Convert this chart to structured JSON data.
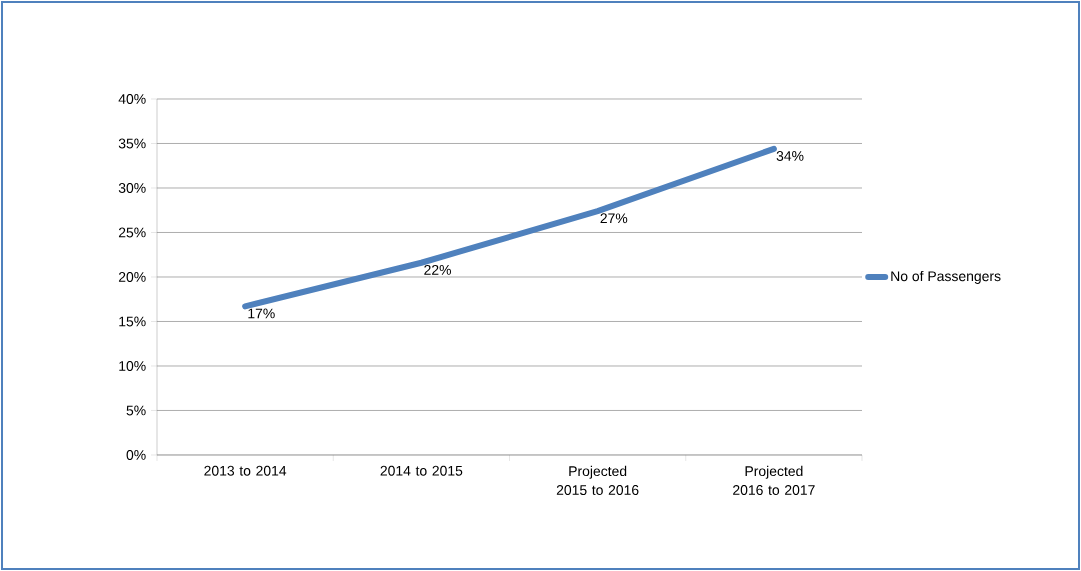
{
  "chart_data": {
    "type": "line",
    "categories": [
      "2013 to 2014",
      "2014 to 2015",
      "Projected 2015 to 2016",
      "Projected 2016 to 2017"
    ],
    "series": [
      {
        "name": "No of Passengers",
        "color": "#4f81bd",
        "values": [
          16.7,
          21.6,
          27.4,
          34.4
        ],
        "value_labels": [
          "17%",
          "22%",
          "27%",
          "34%"
        ]
      }
    ],
    "ylim": [
      0,
      40
    ],
    "yticks": [
      {
        "value": 0,
        "label": "0%"
      },
      {
        "value": 5,
        "label": "5%"
      },
      {
        "value": 10,
        "label": "10%"
      },
      {
        "value": 15,
        "label": "15%"
      },
      {
        "value": 20,
        "label": "20%"
      },
      {
        "value": 25,
        "label": "25%"
      },
      {
        "value": 30,
        "label": "30%"
      },
      {
        "value": 35,
        "label": "35%"
      },
      {
        "value": 40,
        "label": "40%"
      }
    ],
    "grid": "y",
    "legend": "right",
    "marker": "none",
    "line_style": "solid"
  }
}
